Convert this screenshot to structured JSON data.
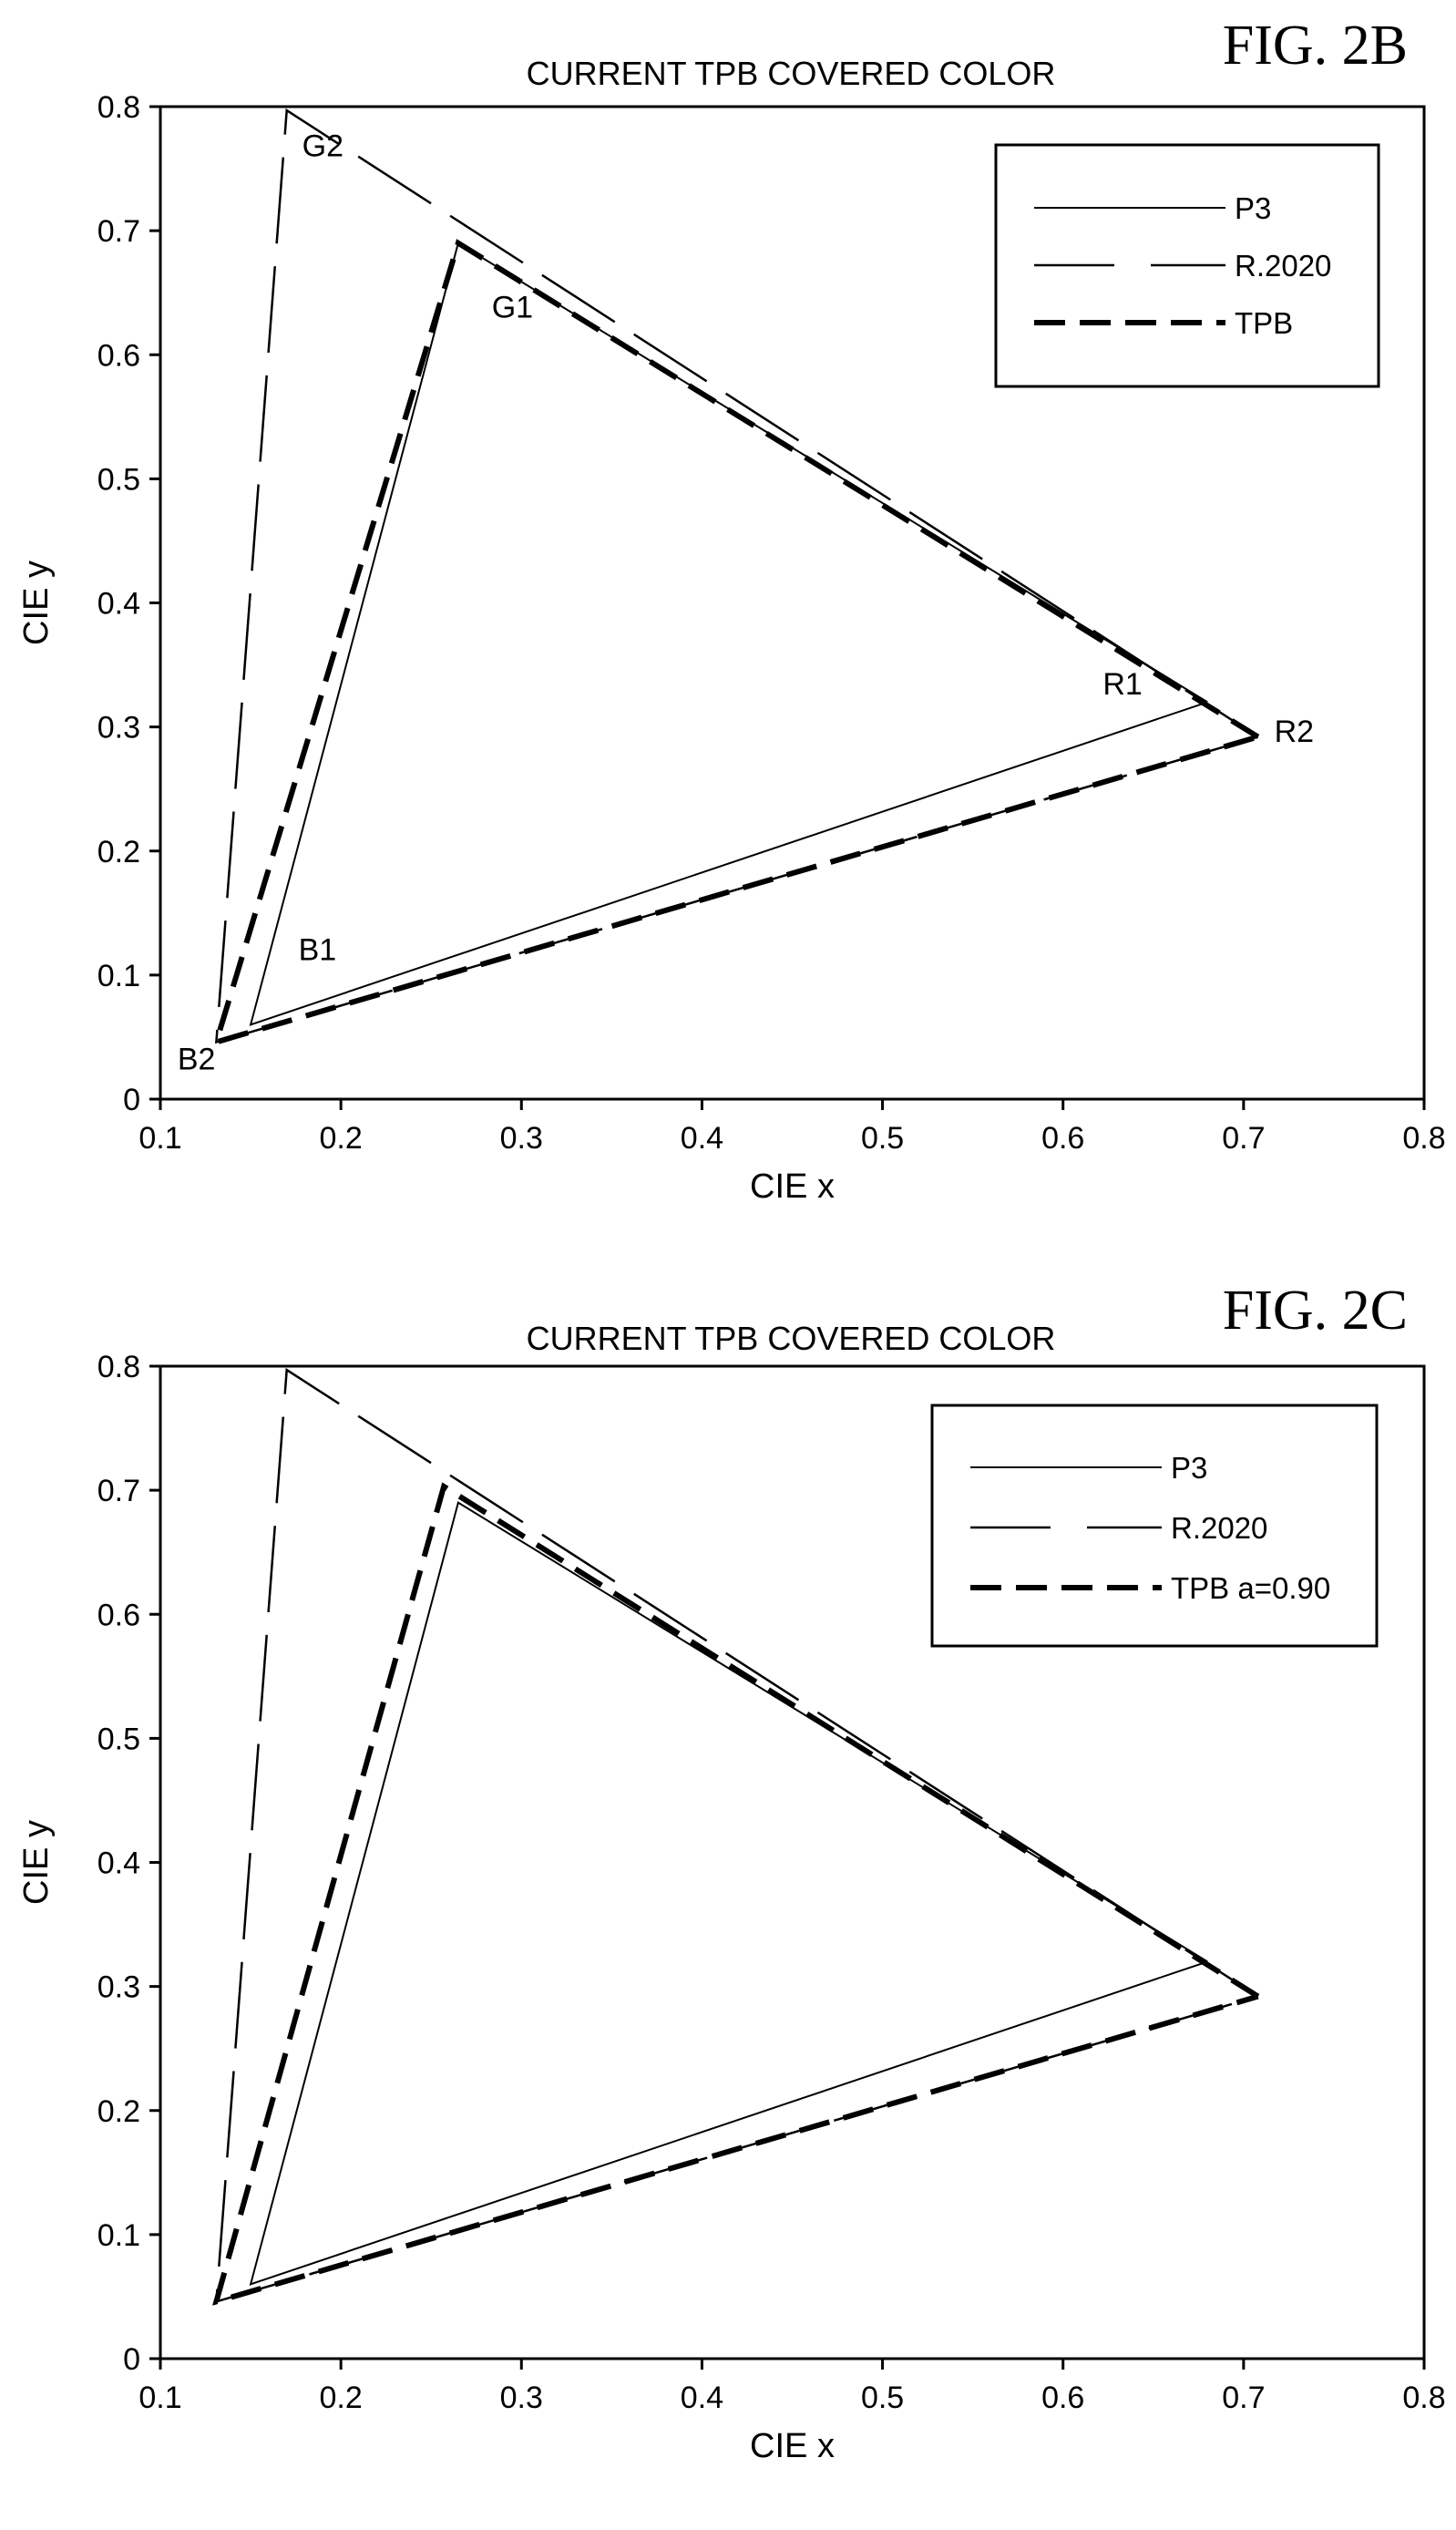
{
  "chart_data": [
    {
      "type": "line",
      "figure_label": "FIG. 2B",
      "title": "CURRENT TPB COVERED COLOR",
      "xlabel": "CIE x",
      "ylabel": "CIE y",
      "xlim": [
        0.1,
        0.8
      ],
      "ylim": [
        0,
        0.8
      ],
      "xticks": [
        "0.1",
        "0.2",
        "0.3",
        "0.4",
        "0.5",
        "0.6",
        "0.7",
        "0.8"
      ],
      "yticks": [
        "0",
        "0.1",
        "0.2",
        "0.3",
        "0.4",
        "0.5",
        "0.6",
        "0.7",
        "0.8"
      ],
      "grid": false,
      "legend_position": "top-right",
      "series": [
        {
          "name": "P3",
          "style": "solid",
          "points": [
            [
              0.68,
              0.32
            ],
            [
              0.265,
              0.69
            ],
            [
              0.15,
              0.06
            ],
            [
              0.68,
              0.32
            ]
          ]
        },
        {
          "name": "R.2020",
          "style": "long-dash",
          "points": [
            [
              0.708,
              0.292
            ],
            [
              0.17,
              0.797
            ],
            [
              0.131,
              0.046
            ],
            [
              0.708,
              0.292
            ]
          ]
        },
        {
          "name": "TPB",
          "style": "bold-dash",
          "points": [
            [
              0.708,
              0.292
            ],
            [
              0.265,
              0.69
            ],
            [
              0.131,
              0.046
            ],
            [
              0.708,
              0.292
            ]
          ]
        }
      ],
      "annotations": [
        {
          "text": "G2",
          "x": 0.19,
          "y": 0.76
        },
        {
          "text": "G1",
          "x": 0.295,
          "y": 0.63
        },
        {
          "text": "R1",
          "x": 0.633,
          "y": 0.326
        },
        {
          "text": "R2",
          "x": 0.728,
          "y": 0.288
        },
        {
          "text": "B1",
          "x": 0.187,
          "y": 0.112
        },
        {
          "text": "B2",
          "x": 0.12,
          "y": 0.024
        }
      ]
    },
    {
      "type": "line",
      "figure_label": "FIG. 2C",
      "title": "CURRENT TPB COVERED COLOR",
      "xlabel": "CIE x",
      "ylabel": "CIE y",
      "xlim": [
        0.1,
        0.8
      ],
      "ylim": [
        0,
        0.8
      ],
      "xticks": [
        "0.1",
        "0.2",
        "0.3",
        "0.4",
        "0.5",
        "0.6",
        "0.7",
        "0.8"
      ],
      "yticks": [
        "0",
        "0.1",
        "0.2",
        "0.3",
        "0.4",
        "0.5",
        "0.6",
        "0.7",
        "0.8"
      ],
      "grid": false,
      "legend_position": "top-right",
      "series": [
        {
          "name": "P3",
          "style": "solid",
          "points": [
            [
              0.68,
              0.32
            ],
            [
              0.265,
              0.69
            ],
            [
              0.15,
              0.06
            ],
            [
              0.68,
              0.32
            ]
          ]
        },
        {
          "name": "R.2020",
          "style": "long-dash",
          "points": [
            [
              0.708,
              0.292
            ],
            [
              0.17,
              0.797
            ],
            [
              0.131,
              0.046
            ],
            [
              0.708,
              0.292
            ]
          ]
        },
        {
          "name": "TPB a=0.90",
          "style": "bold-dash",
          "points": [
            [
              0.708,
              0.292
            ],
            [
              0.257,
              0.703
            ],
            [
              0.131,
              0.046
            ],
            [
              0.708,
              0.292
            ]
          ]
        }
      ],
      "annotations": []
    }
  ]
}
